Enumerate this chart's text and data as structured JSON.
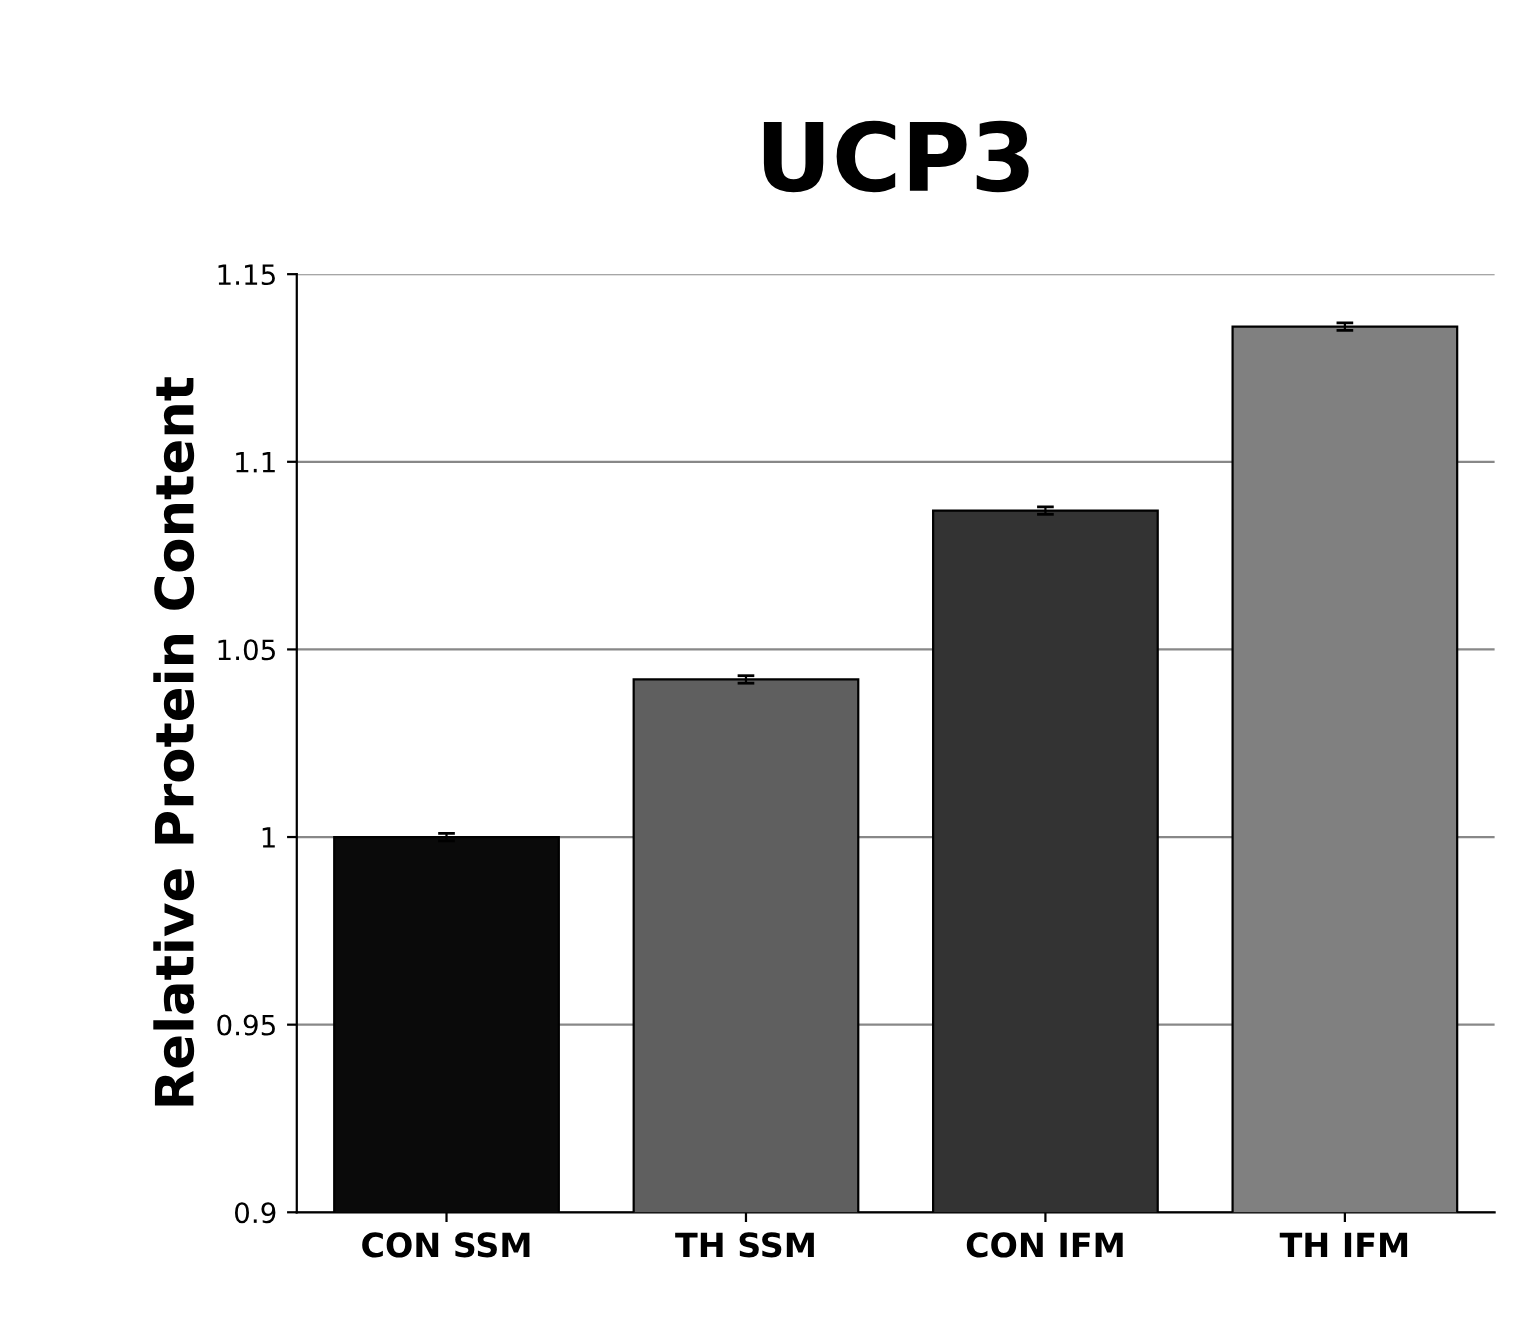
{
  "chart_data": {
    "type": "bar",
    "title": "UCP3",
    "ylabel": "Relative Protein Content",
    "categories": [
      "CON SSM",
      "TH SSM",
      "CON IFM",
      "TH IFM"
    ],
    "values": [
      1.0,
      1.042,
      1.087,
      1.136
    ],
    "errors": [
      0.001,
      0.001,
      0.001,
      0.001
    ],
    "colors": [
      "#0a0a0a",
      "#5f5f5f",
      "#333333",
      "#808080"
    ],
    "ylim": [
      0.9,
      1.15
    ],
    "yticks": [
      0.9,
      0.95,
      1,
      1.05,
      1.1,
      1.15
    ],
    "grid": "y",
    "legend": false
  }
}
